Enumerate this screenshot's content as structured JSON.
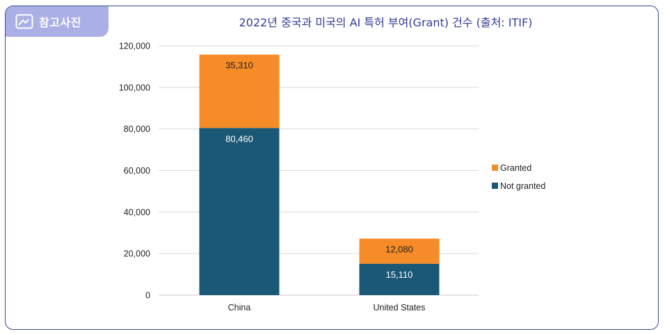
{
  "header": {
    "tab_label": "참고사진",
    "tab_icon": "image-icon",
    "title": "2022년 중국과 미국의 AI 특허 부여(Grant) 건수 (출처: ITIF)"
  },
  "colors": {
    "frame_border": "#3a4a8c",
    "tab_bg": "#aab0e6",
    "title_text": "#2f3c94",
    "granted": "#f58c28",
    "not_granted": "#1b5876"
  },
  "chart_data": {
    "type": "bar",
    "stacked": true,
    "title": "2022년 중국과 미국의 AI 특허 부여(Grant) 건수 (출처: ITIF)",
    "xlabel": "",
    "ylabel": "",
    "categories": [
      "China",
      "United States"
    ],
    "series": [
      {
        "name": "Not granted",
        "color": "#1b5876",
        "values": [
          80460,
          15110
        ],
        "labels": [
          "80,460",
          "15,110"
        ]
      },
      {
        "name": "Granted",
        "color": "#f58c28",
        "values": [
          35310,
          12080
        ],
        "labels": [
          "35,310",
          "12,080"
        ]
      }
    ],
    "ylim": [
      0,
      120000
    ],
    "yticks": [
      0,
      20000,
      40000,
      60000,
      80000,
      100000,
      120000
    ],
    "ytick_labels": [
      "0",
      "20,000",
      "40,000",
      "60,000",
      "80,000",
      "100,000",
      "120,000"
    ],
    "grid": true,
    "legend": {
      "position": "right",
      "entries": [
        "Granted",
        "Not granted"
      ]
    }
  }
}
